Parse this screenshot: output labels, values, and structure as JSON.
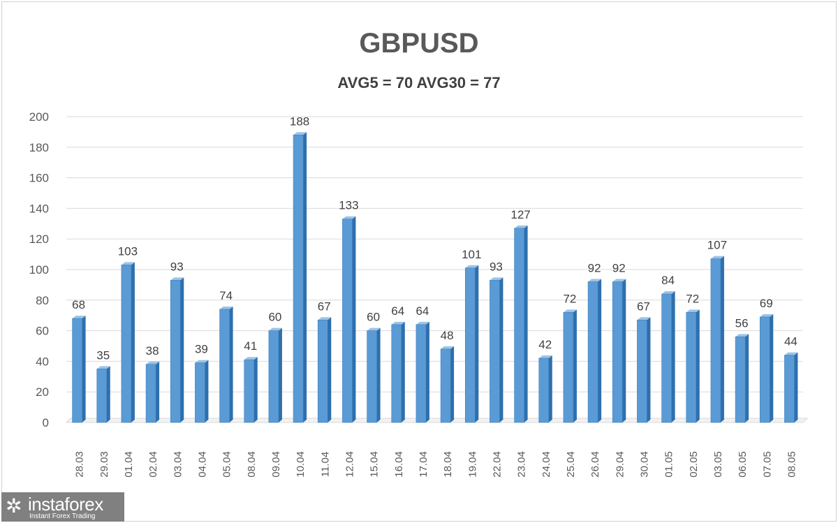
{
  "chart_data": {
    "type": "bar",
    "title": "GBPUSD",
    "subtitle": "AVG5 = 70 AVG30 = 77",
    "xlabel": "",
    "ylabel": "",
    "ylim": [
      0,
      200
    ],
    "yticks": [
      0,
      20,
      40,
      60,
      80,
      100,
      120,
      140,
      160,
      180,
      200
    ],
    "grid": true,
    "categories": [
      "28.03",
      "29.03",
      "01.04",
      "02.04",
      "03.04",
      "04.04",
      "05.04",
      "08.04",
      "09.04",
      "10.04",
      "11.04",
      "12.04",
      "15.04",
      "16.04",
      "17.04",
      "18.04",
      "19.04",
      "22.04",
      "23.04",
      "24.04",
      "25.04",
      "26.04",
      "29.04",
      "30.04",
      "01.05",
      "02.05",
      "03.05",
      "06.05",
      "07.05",
      "08.05"
    ],
    "values": [
      68,
      35,
      103,
      38,
      93,
      39,
      74,
      41,
      60,
      188,
      67,
      133,
      60,
      64,
      64,
      48,
      101,
      93,
      127,
      42,
      72,
      92,
      92,
      67,
      84,
      72,
      107,
      56,
      69,
      44
    ],
    "bar_color": "#5b9bd5"
  },
  "logo": {
    "name": "instaforex",
    "tagline": "Instant Forex Trading"
  }
}
